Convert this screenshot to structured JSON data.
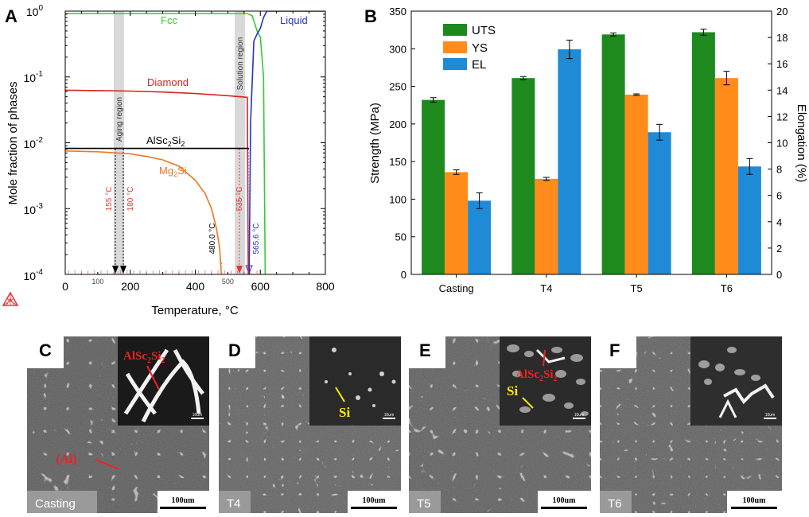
{
  "panel_letters": {
    "a": "A",
    "b": "B",
    "c": "C",
    "d": "D",
    "e": "E",
    "f": "F"
  },
  "chart_data": [
    {
      "type": "line",
      "panel": "A",
      "xlabel": "Temperature, °C",
      "ylabel": "Mole fraction of phases",
      "xlim": [
        0,
        800
      ],
      "ylim": [
        0.0001,
        1
      ],
      "yscale": "log",
      "x_ticks": [
        "0",
        "200",
        "400",
        "600",
        "800"
      ],
      "x_minor_labels": [
        "100",
        "500"
      ],
      "y_ticks": [
        "10^0",
        "10^-1",
        "10^-2",
        "10^-3",
        "10^-4"
      ],
      "series": [
        {
          "name": "Fcc",
          "color": "#33cc33",
          "x": [
            0,
            100,
            200,
            300,
            400,
            500,
            560,
            575,
            585,
            590,
            600,
            610,
            615
          ],
          "y": [
            0.92,
            0.92,
            0.92,
            0.92,
            0.92,
            0.92,
            0.92,
            0.85,
            0.6,
            0.5,
            0.4,
            0.1,
            0.0001
          ]
        },
        {
          "name": "Liquid",
          "color": "#2233cc",
          "x": [
            565.6,
            570,
            580,
            590,
            600,
            610,
            620,
            800
          ],
          "y": [
            0.0001,
            0.02,
            0.35,
            0.45,
            0.55,
            0.8,
            1.0,
            1.0
          ]
        },
        {
          "name": "Diamond",
          "color": "#dd2222",
          "x": [
            0,
            100,
            200,
            300,
            400,
            500,
            560,
            563
          ],
          "y": [
            0.063,
            0.062,
            0.061,
            0.059,
            0.056,
            0.052,
            0.049,
            0.0001
          ]
        },
        {
          "name": "AlSc2Si2",
          "color": "#000000",
          "x": [
            0,
            100,
            200,
            300,
            400,
            500,
            565
          ],
          "y": [
            0.0082,
            0.0082,
            0.0082,
            0.0082,
            0.0082,
            0.0082,
            0.0082
          ]
        },
        {
          "name": "Mg2Si",
          "color": "#ee7722",
          "x": [
            0,
            100,
            200,
            250,
            300,
            350,
            400,
            430,
            450,
            465,
            475,
            480
          ],
          "y": [
            0.0075,
            0.0073,
            0.0068,
            0.0062,
            0.0055,
            0.0044,
            0.0027,
            0.0017,
            0.001,
            0.0005,
            0.00025,
            0.0001
          ]
        }
      ],
      "annotations": {
        "aging_region": "Aging region",
        "solution_region": "Solution region",
        "t155": "155 °C",
        "t180": "180 °C",
        "t535": "535 °C",
        "t480": "480.0 °C",
        "t565": "565.6 °C"
      },
      "curve_labels": {
        "fcc": "Fcc",
        "liquid": "Liquid",
        "diamond": "Diamond",
        "alsc2si2": "AlSc2Si2",
        "mg2si": "Mg2Si"
      }
    },
    {
      "type": "bar",
      "panel": "B",
      "categories": [
        "Casting",
        "T4",
        "T5",
        "T6"
      ],
      "ylabel": "Strength (MPa)",
      "ylabel_right": "Elongation (%)",
      "ylim": [
        0,
        350
      ],
      "ylim_right": [
        0,
        20
      ],
      "y_ticks": [
        "0",
        "50",
        "100",
        "150",
        "200",
        "250",
        "300",
        "350"
      ],
      "y_ticks_right": [
        "0",
        "2",
        "4",
        "6",
        "8",
        "10",
        "12",
        "14",
        "16",
        "18",
        "20"
      ],
      "legend_position": "top-left",
      "series": [
        {
          "name": "UTS",
          "axis": "left",
          "color": "#1e8a1e",
          "values": [
            232,
            261,
            319,
            322
          ],
          "errors": [
            3,
            2,
            2,
            4
          ]
        },
        {
          "name": "YS",
          "axis": "left",
          "color": "#ff8c1a",
          "values": [
            136,
            127,
            239,
            261
          ],
          "errors": [
            3,
            2,
            1,
            9
          ]
        },
        {
          "name": "EL",
          "axis": "right",
          "color": "#1f8ad6",
          "values": [
            5.6,
            17.1,
            10.8,
            8.2
          ],
          "errors": [
            0.6,
            0.7,
            0.6,
            0.6
          ]
        }
      ]
    }
  ],
  "micrographs": [
    {
      "id": "C",
      "label": "Casting",
      "scale": "100um",
      "inset_scale": "10um",
      "inset_callouts": [
        "AlSc2Si2"
      ],
      "main_callouts": [
        "(Al)"
      ]
    },
    {
      "id": "D",
      "label": "T4",
      "scale": "100um",
      "inset_scale": "10um",
      "inset_callouts": [
        "Si"
      ],
      "main_callouts": []
    },
    {
      "id": "E",
      "label": "T5",
      "scale": "100um",
      "inset_scale": "10um",
      "inset_callouts": [
        "AlSc2Si2",
        "Si"
      ],
      "main_callouts": []
    },
    {
      "id": "F",
      "label": "T6",
      "scale": "100um",
      "inset_scale": "10um",
      "inset_callouts": [],
      "main_callouts": []
    }
  ]
}
